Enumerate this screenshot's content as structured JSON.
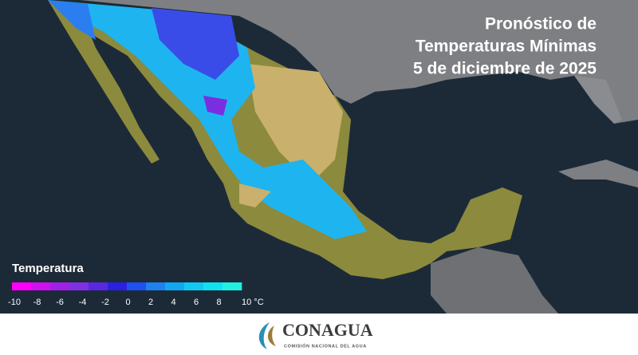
{
  "header": {
    "title_lines": [
      "Pronóstico de",
      "Temperaturas Mínimas",
      "5 de diciembre de 2025"
    ]
  },
  "legend": {
    "title": "Temperatura",
    "ticks": [
      -10,
      -8,
      -6,
      -4,
      -2,
      0,
      2,
      4,
      6,
      8,
      {
        "value": 10,
        "label": "10 °C"
      }
    ],
    "colors": [
      "#ff00ff",
      "#d010f0",
      "#a020e8",
      "#8030e0",
      "#5a28e0",
      "#2a20e0",
      "#2050f0",
      "#2080f0",
      "#10a8f0",
      "#10c8f0",
      "#10e0f0",
      "#20f0e0"
    ]
  },
  "footer": {
    "logo_name": "CONAGUA",
    "logo_subtitle": "COMISIÓN NACIONAL DEL AGUA"
  }
}
